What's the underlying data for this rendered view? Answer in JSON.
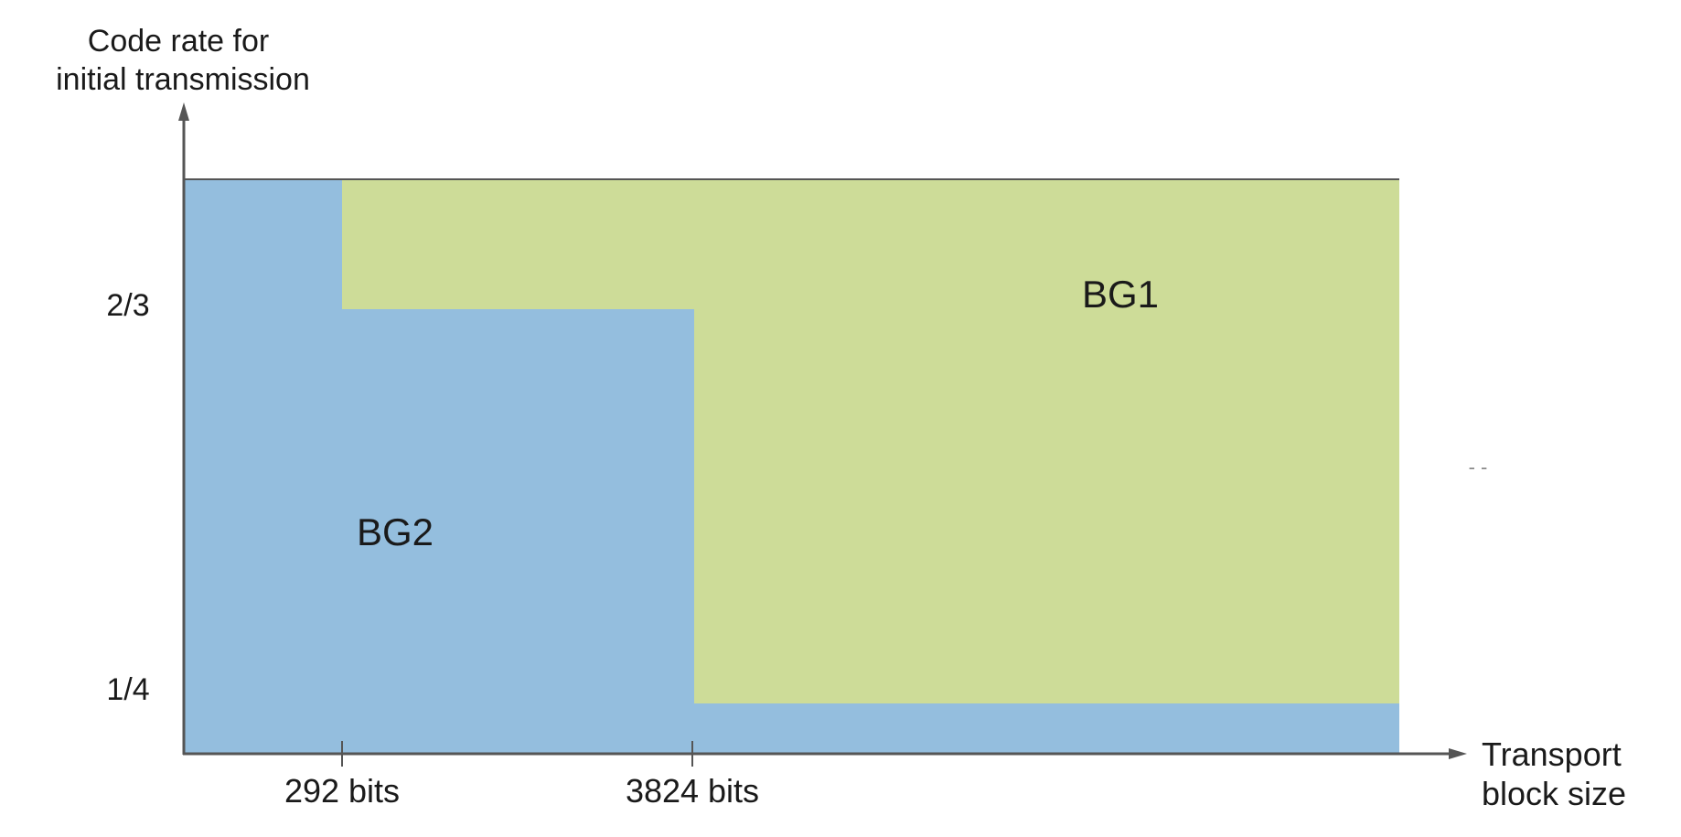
{
  "axes": {
    "y_title_line1": "Code rate for",
    "y_title_line2": "initial transmission",
    "x_title_line1": "Transport",
    "x_title_line2": "block size"
  },
  "y_ticks": [
    "2/3",
    "1/4"
  ],
  "x_ticks": [
    "292 bits",
    "3824 bits"
  ],
  "regions": {
    "bg1": {
      "label": "BG1",
      "color": "#cddc98"
    },
    "bg2": {
      "label": "BG2",
      "color": "#94bede"
    }
  },
  "artifact_mark": "- -",
  "colors": {
    "axis": "#555555",
    "tick": "#555555",
    "text": "#1a1a1a"
  }
}
